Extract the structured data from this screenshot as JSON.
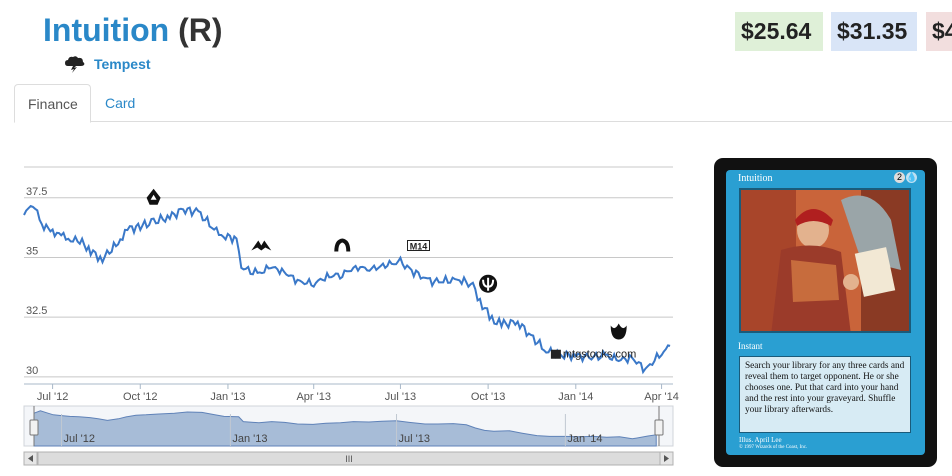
{
  "card": {
    "name": "Intuition",
    "rarity": "(R)",
    "set": "Tempest",
    "set_icon": "storm-cloud-icon"
  },
  "prices": [
    "$25.64",
    "$31.35",
    "$4"
  ],
  "tabs": [
    "Finance",
    "Card"
  ],
  "chart_data": {
    "type": "line",
    "x_range": [
      "2012-06",
      "2014-04"
    ],
    "x_ticks": [
      "Jul '12",
      "Oct '12",
      "Jan '13",
      "Apr '13",
      "Jul '13",
      "Oct '13",
      "Jan '14",
      "Apr '14"
    ],
    "y_ticks": [
      "37.5",
      "35",
      "32.5",
      "30"
    ],
    "ylim": [
      29.7,
      39.0
    ],
    "watermark": "mtgstocks.com",
    "series": [
      {
        "values": [
          [
            "2012-06-01",
            36.7
          ],
          [
            "2012-06-08",
            37.3
          ],
          [
            "2012-06-15",
            36.8
          ],
          [
            "2012-06-22",
            36.3
          ],
          [
            "2012-07-01",
            36.1
          ],
          [
            "2012-07-10",
            35.9
          ],
          [
            "2012-07-20",
            35.8
          ],
          [
            "2012-08-01",
            35.6
          ],
          [
            "2012-08-10",
            35.3
          ],
          [
            "2012-08-20",
            34.9
          ],
          [
            "2012-09-01",
            35.3
          ],
          [
            "2012-09-10",
            35.8
          ],
          [
            "2012-09-20",
            36.2
          ],
          [
            "2012-10-01",
            36.3
          ],
          [
            "2012-10-15",
            36.5
          ],
          [
            "2012-11-01",
            36.7
          ],
          [
            "2012-11-15",
            37.0
          ],
          [
            "2012-12-01",
            36.9
          ],
          [
            "2012-12-15",
            36.3
          ],
          [
            "2012-12-25",
            35.9
          ],
          [
            "2013-01-10",
            35.8
          ],
          [
            "2013-01-15",
            34.6
          ],
          [
            "2013-02-01",
            34.3
          ],
          [
            "2013-02-15",
            34.6
          ],
          [
            "2013-03-01",
            34.4
          ],
          [
            "2013-03-15",
            34.0
          ],
          [
            "2013-04-01",
            33.9
          ],
          [
            "2013-04-15",
            34.2
          ],
          [
            "2013-05-01",
            34.3
          ],
          [
            "2013-05-15",
            34.6
          ],
          [
            "2013-06-01",
            34.5
          ],
          [
            "2013-06-15",
            34.7
          ],
          [
            "2013-07-01",
            34.8
          ],
          [
            "2013-07-15",
            34.4
          ],
          [
            "2013-08-01",
            34.0
          ],
          [
            "2013-08-15",
            34.0
          ],
          [
            "2013-09-01",
            34.1
          ],
          [
            "2013-09-15",
            33.8
          ],
          [
            "2013-09-25",
            33.0
          ],
          [
            "2013-10-05",
            32.4
          ],
          [
            "2013-10-15",
            32.2
          ],
          [
            "2013-11-01",
            32.3
          ],
          [
            "2013-11-15",
            31.7
          ],
          [
            "2013-12-01",
            31.1
          ],
          [
            "2013-12-15",
            30.9
          ],
          [
            "2014-01-01",
            30.9
          ],
          [
            "2014-01-15",
            30.8
          ],
          [
            "2014-02-01",
            30.9
          ],
          [
            "2014-02-15",
            30.7
          ],
          [
            "2014-03-01",
            30.8
          ],
          [
            "2014-03-15",
            30.3
          ],
          [
            "2014-04-01",
            31.0
          ],
          [
            "2014-04-10",
            31.3
          ]
        ]
      }
    ],
    "event_markers": [
      {
        "date": "2012-10-15",
        "value": 37.5,
        "icon": "return-to-ravnica-icon"
      },
      {
        "date": "2013-02-05",
        "value": 35.5,
        "icon": "gatecrash-icon"
      },
      {
        "date": "2013-05-01",
        "value": 35.5,
        "icon": "dragons-maze-icon"
      },
      {
        "date": "2013-07-20",
        "value": 35.5,
        "icon": "m14-icon",
        "label": "M14"
      },
      {
        "date": "2013-10-01",
        "value": 33.9,
        "icon": "theros-icon"
      },
      {
        "date": "2014-02-15",
        "value": 31.9,
        "icon": "born-of-the-gods-icon"
      }
    ],
    "navigator_labels": [
      "Jul '12",
      "Jan '13",
      "Jul '13",
      "Jan '14"
    ],
    "scrollbar_grip": "III"
  },
  "card_image": {
    "name": "Intuition",
    "cost": "2",
    "type_line": "Instant",
    "rules_text": "Search your library for any three cards and reveal them to target opponent. He or she chooses one. Put that card into your hand and the rest into your graveyard. Shuffle your library afterwards.",
    "illustrator": "Illus. April Lee",
    "copyright": "© 1997 Wizards of the Coast, Inc.",
    "artist_mark": "ALEE"
  },
  "colors": {
    "link": "#2a88c8",
    "line": "#3a78c8",
    "card_blue": "#2a9fd2",
    "price_green": "#dff0d8",
    "price_blue": "#d9e5f7",
    "price_red": "#f2dede"
  }
}
